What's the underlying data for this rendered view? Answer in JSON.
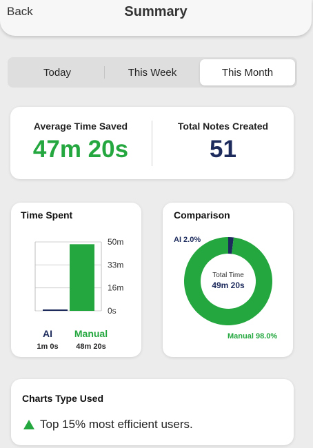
{
  "header": {
    "back_label": "Back",
    "title": "Summary"
  },
  "tabs": [
    {
      "label": "Today",
      "active": false
    },
    {
      "label": "This Week",
      "active": false
    },
    {
      "label": "This Month",
      "active": true
    }
  ],
  "stats": {
    "avg_time_label": "Average Time Saved",
    "avg_time_value": "47m 20s",
    "notes_label": "Total Notes Created",
    "notes_value": "51"
  },
  "time_spent": {
    "title": "Time Spent",
    "ai_label": "AI",
    "ai_value": "1m 0s",
    "manual_label": "Manual",
    "manual_value": "48m 20s"
  },
  "comparison": {
    "title": "Comparison",
    "ai_label": "AI 2.0%",
    "manual_label": "Manual 98.0%",
    "center_label": "Total Time",
    "center_value": "49m 20s"
  },
  "bottom": {
    "title": "Charts Type Used",
    "efficiency_text": "Top 15% most efficient users.",
    "icon": "triangle-up-icon"
  },
  "colors": {
    "green": "#23a73e",
    "navy": "#1c2a5c"
  },
  "chart_data": [
    {
      "type": "bar",
      "title": "Time Spent",
      "categories": [
        "AI",
        "Manual"
      ],
      "values": [
        1.0,
        48.33
      ],
      "unit": "minutes",
      "ylim": [
        0,
        50
      ],
      "ticks": [
        "50m",
        "33m",
        "16m",
        "0s"
      ],
      "colors": [
        "#1c2a5c",
        "#23a73e"
      ],
      "grid": true
    },
    {
      "type": "pie",
      "title": "Comparison",
      "categories": [
        "AI",
        "Manual"
      ],
      "values": [
        2.0,
        98.0
      ],
      "unit": "percent",
      "colors": [
        "#1c2a5c",
        "#23a73e"
      ],
      "donut": true
    }
  ]
}
